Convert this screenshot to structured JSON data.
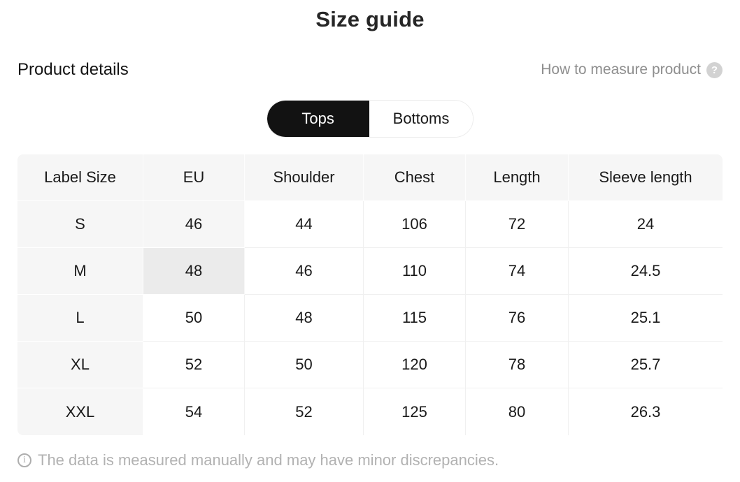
{
  "page": {
    "title": "Size guide"
  },
  "meta": {
    "product_details_label": "Product details",
    "how_to_measure_label": "How to measure product",
    "help_icon": {
      "name": "question-circle-icon",
      "glyph": "?",
      "bg": "#d2d2d2"
    }
  },
  "toggle": {
    "options": [
      {
        "label": "Tops",
        "selected": true
      },
      {
        "label": "Bottoms",
        "selected": false
      }
    ],
    "active_bg": "#121212",
    "active_text": "#ffffff"
  },
  "size_table": {
    "columns": [
      "Label Size",
      "EU",
      "Shoulder",
      "Chest",
      "Length",
      "Sleeve length"
    ],
    "rows": [
      {
        "label_size": "S",
        "eu": "46",
        "shoulder": "44",
        "chest": "106",
        "length": "72",
        "sleeve_length": "24"
      },
      {
        "label_size": "M",
        "eu": "48",
        "shoulder": "46",
        "chest": "110",
        "length": "74",
        "sleeve_length": "24.5"
      },
      {
        "label_size": "L",
        "eu": "50",
        "shoulder": "48",
        "chest": "115",
        "length": "76",
        "sleeve_length": "25.1"
      },
      {
        "label_size": "XL",
        "eu": "52",
        "shoulder": "50",
        "chest": "120",
        "length": "78",
        "sleeve_length": "25.7"
      },
      {
        "label_size": "XXL",
        "eu": "54",
        "shoulder": "52",
        "chest": "125",
        "length": "80",
        "sleeve_length": "26.3"
      }
    ],
    "highlighted_cell": {
      "row_label": "M",
      "column": "EU",
      "color": "#ebebeb"
    },
    "shaded_column_color": "#f6f6f6"
  },
  "footer": {
    "note": "The data is measured manually and may have minor discrepancies.",
    "info_icon": {
      "name": "info-circle-icon",
      "glyph": "i"
    }
  }
}
